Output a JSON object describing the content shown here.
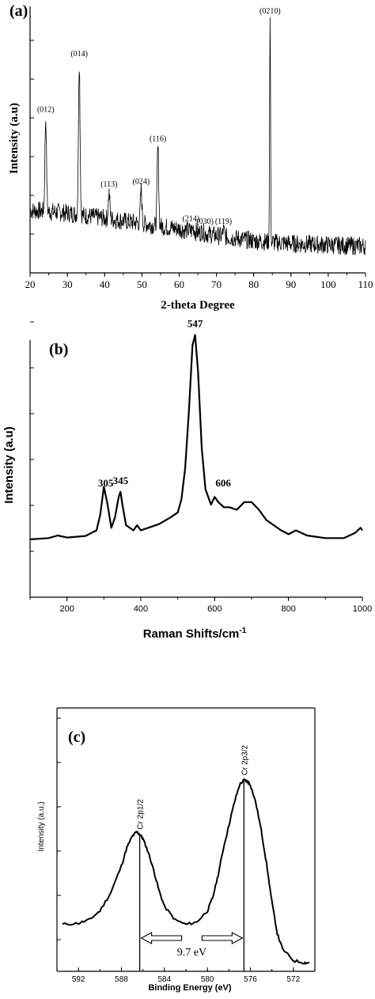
{
  "chart_data": [
    {
      "type": "line",
      "panel_label": "(a)",
      "title": "",
      "xlabel": "2-theta Degree",
      "ylabel": "Intensity (a.u)",
      "xlim": [
        20,
        110
      ],
      "ylim": [
        0,
        100
      ],
      "x_ticks": [
        20,
        30,
        40,
        50,
        60,
        70,
        80,
        90,
        100,
        110
      ],
      "y_ticks_labeled": false,
      "grid": false,
      "peaks": [
        {
          "x": 24.2,
          "y": 58,
          "label": "(012)"
        },
        {
          "x": 33.2,
          "y": 79,
          "label": "(014)"
        },
        {
          "x": 41.2,
          "y": 30,
          "label": "(113)"
        },
        {
          "x": 49.8,
          "y": 31,
          "label": "(024)"
        },
        {
          "x": 54.3,
          "y": 47,
          "label": "(116)"
        },
        {
          "x": 63.8,
          "y": 17,
          "label": "(214)"
        },
        {
          "x": 66.3,
          "y": 16,
          "label": "(030)"
        },
        {
          "x": 71.9,
          "y": 16,
          "label": "(119)"
        },
        {
          "x": 84.4,
          "y": 95,
          "label": "(0210)"
        }
      ],
      "baseline": [
        [
          20,
          23.5
        ],
        [
          30,
          22.5
        ],
        [
          40,
          20.5
        ],
        [
          50,
          18.5
        ],
        [
          60,
          16.5
        ],
        [
          70,
          14
        ],
        [
          80,
          12
        ],
        [
          90,
          11
        ],
        [
          100,
          10.5
        ],
        [
          110,
          10
        ]
      ]
    },
    {
      "type": "line",
      "panel_label": "(b)",
      "title": "",
      "xlabel": "Raman Shifts/cm",
      "xlabel_superscript": "-1",
      "ylabel": "Intensity (a.u)",
      "xlim": [
        100,
        1000
      ],
      "ylim": [
        0,
        100
      ],
      "x_ticks": [
        200,
        400,
        600,
        800,
        1000
      ],
      "y_ticks_labeled": false,
      "grid": false,
      "series": [
        {
          "name": "",
          "x": [
            100,
            150,
            175,
            200,
            250,
            280,
            290,
            300,
            310,
            320,
            330,
            340,
            345,
            350,
            360,
            380,
            390,
            400,
            420,
            450,
            480,
            500,
            510,
            520,
            530,
            540,
            547,
            555,
            565,
            575,
            590,
            600,
            610,
            625,
            640,
            660,
            680,
            700,
            720,
            740,
            760,
            780,
            800,
            820,
            850,
            900,
            950,
            980,
            995,
            1000
          ],
          "y": [
            22.5,
            23,
            24,
            23.2,
            23.8,
            26,
            32,
            43,
            36,
            27,
            31,
            39,
            41,
            36,
            28,
            26,
            28,
            26,
            27,
            28.5,
            31,
            33,
            38,
            50,
            72,
            98,
            102,
            88,
            58,
            42,
            36,
            39,
            37,
            35,
            35,
            34,
            37,
            37,
            34,
            30,
            28,
            26,
            24.5,
            26,
            24,
            23,
            23,
            25,
            27,
            26
          ]
        }
      ],
      "peak_labels": [
        {
          "x": 305,
          "text": "305"
        },
        {
          "x": 345,
          "text": "345"
        },
        {
          "x": 547,
          "text": "547"
        },
        {
          "x": 606,
          "text": "606"
        }
      ]
    },
    {
      "type": "line",
      "panel_label": "(c)",
      "title": "",
      "xlabel": "Binding Energy (eV)",
      "ylabel": "Intensity (a.u.)",
      "xlim": [
        594,
        570
      ],
      "ylim": [
        0,
        100
      ],
      "x_ticks": [
        592,
        588,
        584,
        580,
        576,
        572
      ],
      "y_ticks_labeled": false,
      "grid": false,
      "series": [
        {
          "name": "",
          "x": [
            593.5,
            592,
            591,
            590,
            589,
            588,
            587.5,
            587,
            586.6,
            586.3,
            586,
            585.5,
            585,
            584.5,
            584,
            583,
            582,
            581,
            580,
            579.5,
            579,
            578.5,
            578,
            577.5,
            577,
            576.6,
            576.3,
            576,
            575.5,
            575,
            574.5,
            574,
            573.5,
            573,
            572,
            571,
            570.5
          ],
          "y": [
            18,
            18.5,
            20,
            24,
            32,
            44,
            52,
            57,
            59,
            58,
            56,
            50,
            42,
            33,
            26,
            20,
            18,
            19,
            24,
            30,
            40,
            52,
            62,
            72,
            80,
            82,
            81.5,
            80,
            72,
            60,
            45,
            28,
            14,
            7,
            2,
            1,
            1
          ]
        }
      ],
      "peak_labels": [
        {
          "x": 586.3,
          "text": "Cr 2p1/2"
        },
        {
          "x": 576.6,
          "text": "Cr 2p3/2"
        }
      ],
      "splitting": {
        "from": 586.3,
        "to": 576.6,
        "label": "9.7 eV"
      }
    }
  ]
}
